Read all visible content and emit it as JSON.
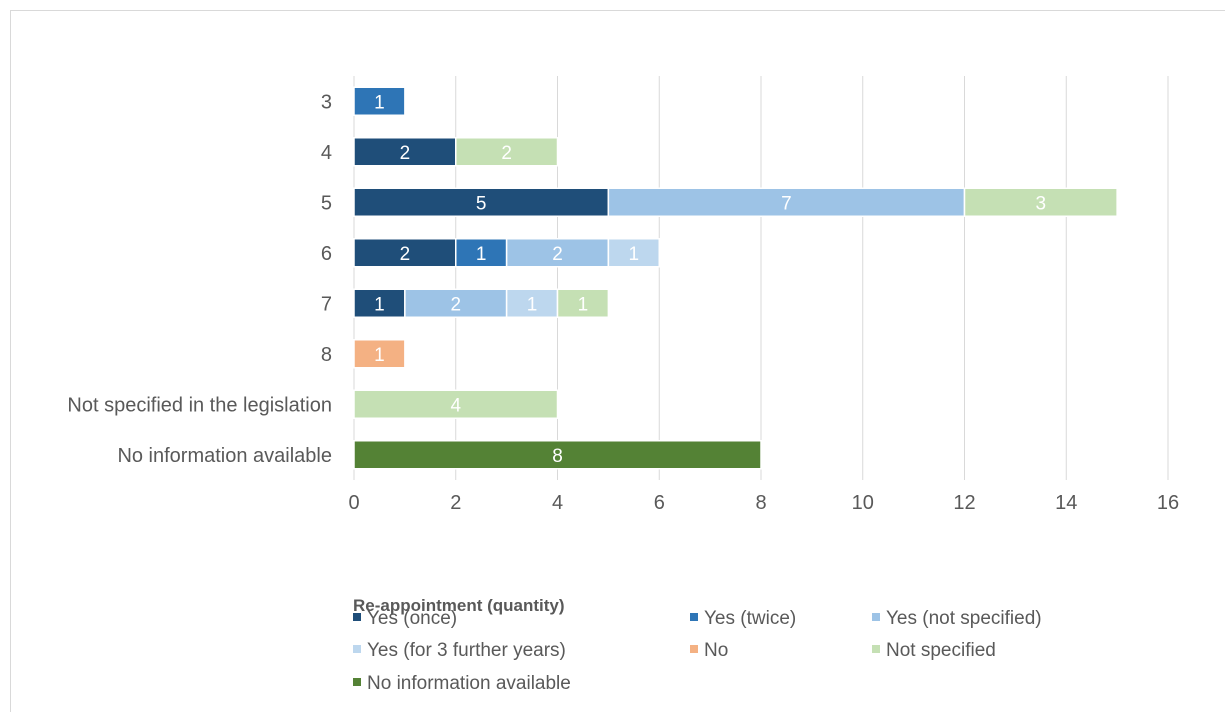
{
  "chart_data": {
    "type": "bar",
    "orientation": "horizontal",
    "stacked": true,
    "categories": [
      "3",
      "4",
      "5",
      "6",
      "7",
      "8",
      "Not specified in the legislation",
      "No information available"
    ],
    "series": [
      {
        "name": "Yes (once)",
        "color": "#1f4e79",
        "values": [
          0,
          2,
          5,
          2,
          1,
          0,
          0,
          0
        ]
      },
      {
        "name": "Yes (twice)",
        "color": "#2e75b6",
        "values": [
          1,
          0,
          0,
          1,
          0,
          0,
          0,
          0
        ]
      },
      {
        "name": "Yes (not specified)",
        "color": "#9dc3e6",
        "values": [
          0,
          0,
          7,
          2,
          2,
          0,
          0,
          0
        ]
      },
      {
        "name": "Yes (for 3 further years)",
        "color": "#bdd7ee",
        "values": [
          0,
          0,
          0,
          1,
          1,
          0,
          0,
          0
        ]
      },
      {
        "name": "No",
        "color": "#f4b183",
        "values": [
          0,
          0,
          0,
          0,
          0,
          1,
          0,
          0
        ]
      },
      {
        "name": "Not specified",
        "color": "#c5e0b4",
        "values": [
          0,
          2,
          3,
          0,
          1,
          0,
          4,
          0
        ]
      },
      {
        "name": "No information available",
        "color": "#548235",
        "values": [
          0,
          0,
          0,
          0,
          0,
          0,
          0,
          8
        ]
      }
    ],
    "xlim": [
      0,
      16
    ],
    "xticks": [
      "0",
      "2",
      "4",
      "6",
      "8",
      "10",
      "12",
      "14",
      "16"
    ],
    "grid": "vertical",
    "legend_title": "Re-appointment (quantity)",
    "legend_position": "bottom"
  }
}
